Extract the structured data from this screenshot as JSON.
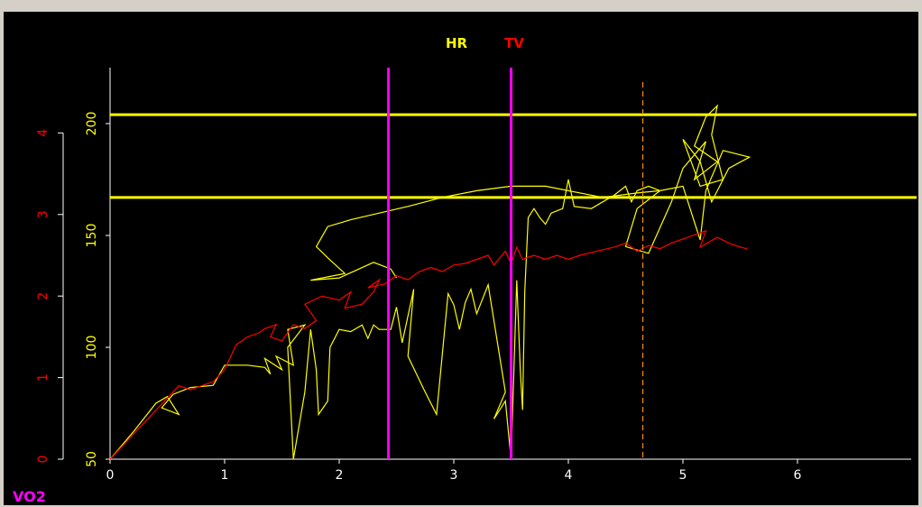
{
  "chart_data": {
    "type": "line",
    "title": "",
    "xlabel": "VO2",
    "x_ticks": [
      "0",
      "1",
      "2",
      "3",
      "4",
      "5",
      "6"
    ],
    "xlim": [
      0,
      7
    ],
    "axes": {
      "hr": {
        "ylim": [
          50,
          225
        ],
        "ticks": [
          "50",
          "100",
          "150",
          "200"
        ],
        "color": "#ffff00"
      },
      "tv": {
        "ylim": [
          0,
          4.8
        ],
        "ticks": [
          "0",
          "1",
          "2",
          "3",
          "4"
        ],
        "color": "#ff0000"
      }
    },
    "legend": [
      {
        "name": "HR",
        "color": "#ffff00"
      },
      {
        "name": "TV",
        "color": "#ff0000"
      }
    ],
    "legend_position": "top-center",
    "reference_lines": {
      "hr_horizontal": [
        204,
        167
      ],
      "vertical_solid": [
        2.43,
        3.5
      ],
      "vertical_dashed": [
        4.65
      ]
    },
    "series": [
      {
        "name": "HR",
        "axis": "hr",
        "color": "#ffff00",
        "points": [
          [
            0,
            50
          ],
          [
            0.2,
            62
          ],
          [
            0.4,
            75
          ],
          [
            0.5,
            78
          ],
          [
            0.6,
            70
          ],
          [
            0.45,
            73
          ],
          [
            0.55,
            79
          ],
          [
            0.7,
            82
          ],
          [
            0.9,
            83
          ],
          [
            1.0,
            92
          ],
          [
            1.2,
            92
          ],
          [
            1.35,
            91
          ],
          [
            1.4,
            88
          ],
          [
            1.35,
            95
          ],
          [
            1.5,
            90
          ],
          [
            1.45,
            96
          ],
          [
            1.6,
            92
          ],
          [
            1.55,
            108
          ],
          [
            1.7,
            110
          ],
          [
            1.55,
            100
          ],
          [
            1.6,
            50
          ],
          [
            1.7,
            80
          ],
          [
            1.75,
            108
          ],
          [
            1.8,
            90
          ],
          [
            1.82,
            70
          ],
          [
            1.9,
            76
          ],
          [
            1.92,
            100
          ],
          [
            2.0,
            108
          ],
          [
            2.1,
            107
          ],
          [
            2.2,
            110
          ],
          [
            2.25,
            104
          ],
          [
            2.3,
            110
          ],
          [
            2.35,
            108
          ],
          [
            2.45,
            108
          ],
          [
            2.5,
            118
          ],
          [
            2.55,
            102
          ],
          [
            2.65,
            126
          ],
          [
            2.6,
            96
          ],
          [
            2.75,
            80
          ],
          [
            2.85,
            70
          ],
          [
            2.95,
            124
          ],
          [
            3.0,
            119
          ],
          [
            3.05,
            108
          ],
          [
            3.1,
            120
          ],
          [
            3.15,
            126
          ],
          [
            3.2,
            115
          ],
          [
            3.3,
            128
          ],
          [
            3.45,
            80
          ],
          [
            3.35,
            68
          ],
          [
            3.45,
            76
          ],
          [
            3.5,
            50
          ],
          [
            3.55,
            130
          ],
          [
            3.58,
            90
          ],
          [
            3.6,
            72
          ],
          [
            3.62,
            125
          ],
          [
            3.65,
            158
          ],
          [
            3.7,
            162
          ],
          [
            3.75,
            158
          ],
          [
            3.8,
            155
          ],
          [
            3.85,
            160
          ],
          [
            3.95,
            162
          ],
          [
            4.0,
            175
          ],
          [
            4.05,
            163
          ],
          [
            4.2,
            162
          ],
          [
            4.4,
            168
          ],
          [
            4.5,
            172
          ],
          [
            4.55,
            165
          ],
          [
            4.6,
            170
          ],
          [
            4.7,
            172
          ],
          [
            4.8,
            170
          ],
          [
            4.6,
            162
          ],
          [
            4.5,
            145
          ],
          [
            4.7,
            142
          ],
          [
            4.9,
            165
          ],
          [
            5.0,
            180
          ],
          [
            5.2,
            192
          ],
          [
            5.1,
            175
          ],
          [
            5.3,
            183
          ],
          [
            5.1,
            190
          ],
          [
            5.2,
            203
          ],
          [
            5.3,
            208
          ],
          [
            5.25,
            195
          ],
          [
            5.35,
            175
          ],
          [
            5.15,
            172
          ],
          [
            5.0,
            193
          ],
          [
            5.15,
            183
          ],
          [
            5.25,
            165
          ],
          [
            5.4,
            180
          ],
          [
            5.58,
            185
          ],
          [
            5.35,
            188
          ],
          [
            5.2,
            170
          ],
          [
            5.15,
            148
          ],
          [
            5.0,
            172
          ],
          [
            4.8,
            170
          ],
          [
            4.6,
            169
          ],
          [
            4.3,
            167
          ],
          [
            4.0,
            170
          ],
          [
            3.8,
            172
          ],
          [
            3.5,
            172
          ],
          [
            3.2,
            170
          ],
          [
            2.9,
            167
          ],
          [
            2.6,
            163
          ],
          [
            2.35,
            160
          ],
          [
            2.1,
            157
          ],
          [
            1.9,
            154
          ],
          [
            1.8,
            145
          ],
          [
            1.9,
            140
          ],
          [
            2.05,
            133
          ],
          [
            1.75,
            130
          ],
          [
            2.0,
            131
          ],
          [
            2.3,
            138
          ],
          [
            2.45,
            135
          ],
          [
            2.5,
            131
          ]
        ]
      },
      {
        "name": "TV",
        "axis": "tv",
        "color": "#ff0000",
        "points": [
          [
            0,
            0
          ],
          [
            0.2,
            0.3
          ],
          [
            0.4,
            0.6
          ],
          [
            0.5,
            0.75
          ],
          [
            0.6,
            0.9
          ],
          [
            0.7,
            0.85
          ],
          [
            0.8,
            0.9
          ],
          [
            0.9,
            0.95
          ],
          [
            1.0,
            1.1
          ],
          [
            1.1,
            1.4
          ],
          [
            1.2,
            1.5
          ],
          [
            1.3,
            1.55
          ],
          [
            1.35,
            1.6
          ],
          [
            1.45,
            1.65
          ],
          [
            1.4,
            1.5
          ],
          [
            1.5,
            1.45
          ],
          [
            1.6,
            1.65
          ],
          [
            1.7,
            1.6
          ],
          [
            1.8,
            1.7
          ],
          [
            1.7,
            1.9
          ],
          [
            1.85,
            2.0
          ],
          [
            2.0,
            1.95
          ],
          [
            2.1,
            2.05
          ],
          [
            2.05,
            1.85
          ],
          [
            2.2,
            1.9
          ],
          [
            2.3,
            2.05
          ],
          [
            2.35,
            2.2
          ],
          [
            2.25,
            2.1
          ],
          [
            2.4,
            2.15
          ],
          [
            2.5,
            2.25
          ],
          [
            2.6,
            2.2
          ],
          [
            2.7,
            2.3
          ],
          [
            2.8,
            2.35
          ],
          [
            2.9,
            2.3
          ],
          [
            3.0,
            2.38
          ],
          [
            3.1,
            2.4
          ],
          [
            3.2,
            2.45
          ],
          [
            3.3,
            2.5
          ],
          [
            3.35,
            2.38
          ],
          [
            3.45,
            2.55
          ],
          [
            3.5,
            2.4
          ],
          [
            3.55,
            2.6
          ],
          [
            3.6,
            2.45
          ],
          [
            3.7,
            2.5
          ],
          [
            3.8,
            2.45
          ],
          [
            3.9,
            2.5
          ],
          [
            4.0,
            2.45
          ],
          [
            4.1,
            2.5
          ],
          [
            4.25,
            2.55
          ],
          [
            4.4,
            2.6
          ],
          [
            4.5,
            2.65
          ],
          [
            4.6,
            2.55
          ],
          [
            4.7,
            2.62
          ],
          [
            4.8,
            2.58
          ],
          [
            4.9,
            2.65
          ],
          [
            5.0,
            2.7
          ],
          [
            5.1,
            2.75
          ],
          [
            5.2,
            2.8
          ],
          [
            5.15,
            2.6
          ],
          [
            5.3,
            2.72
          ],
          [
            5.4,
            2.65
          ],
          [
            5.5,
            2.6
          ],
          [
            5.56,
            2.58
          ]
        ]
      }
    ]
  }
}
